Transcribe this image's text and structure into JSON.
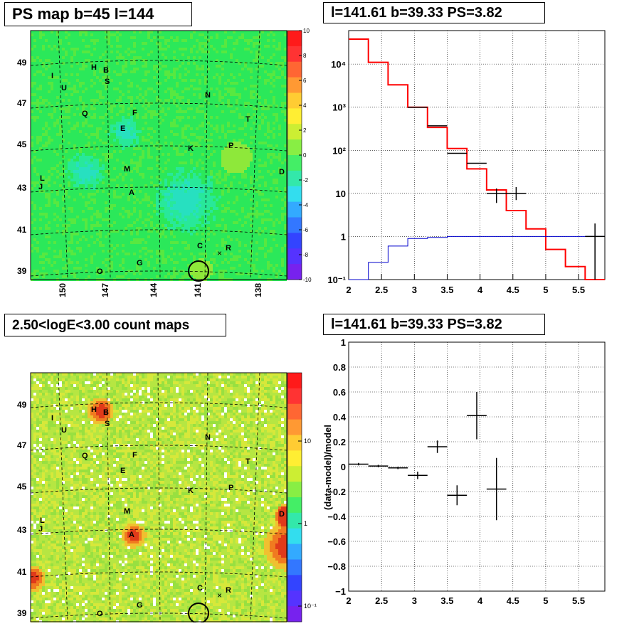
{
  "panels": {
    "top_left_title": "PS map b=45 l=144",
    "top_right_title": "l=141.61 b=39.33 PS=3.82",
    "bottom_left_title": "2.50<logE<3.00 count maps",
    "bottom_right_title": "l=141.61 b=39.33 PS=3.82"
  },
  "chart_data": [
    {
      "type": "heatmap",
      "title": "PS map b=45 l=144",
      "xlabel": "",
      "ylabel": "",
      "x_ticks": [
        "150",
        "147",
        "144",
        "141",
        "138"
      ],
      "y_ticks": [
        "49",
        "47",
        "45",
        "43",
        "41",
        "39"
      ],
      "colorbar": {
        "range": [
          -10,
          10
        ],
        "ticks": [
          "10",
          "8",
          "6",
          "4",
          "2",
          "0",
          "-2",
          "-4",
          "-6",
          "-8",
          "-10"
        ]
      },
      "sources": [
        "H",
        "B",
        "I",
        "S",
        "U",
        "N",
        "Q",
        "F",
        "T",
        "E",
        "K",
        "P",
        "M",
        "D",
        "L",
        "J",
        "A",
        "C",
        "R",
        "G",
        "O"
      ],
      "circle_marker": {
        "l": 141.61,
        "b": 39.33
      },
      "colors": {
        "background": "#27e85a",
        "low": "#28e0b8"
      }
    },
    {
      "type": "line",
      "title": "l=141.61 b=39.33 PS=3.82",
      "xlabel": "",
      "ylabel": "",
      "xlim": [
        2,
        5.9
      ],
      "ylim": [
        0.1,
        60000
      ],
      "log_y": true,
      "grid": true,
      "x_ticks": [
        "2",
        "2.5",
        "3",
        "3.5",
        "4",
        "4.5",
        "5",
        "5.5"
      ],
      "y_ticks": [
        "10⁻¹",
        "1",
        "10",
        "10²",
        "10³",
        "10⁴"
      ],
      "series": [
        {
          "color": "#ff0000",
          "bins": [
            2.0,
            2.3,
            2.6,
            2.9,
            3.2,
            3.5,
            3.8,
            4.1,
            4.4,
            4.7,
            5.0,
            5.3,
            5.6,
            5.9
          ],
          "values": [
            38000,
            11000,
            3300,
            1000,
            340,
            110,
            37,
            12,
            4,
            1.5,
            0.5,
            0.2,
            0.09
          ]
        },
        {
          "color": "#0000cc",
          "bins": [
            2.0,
            2.3,
            2.6,
            2.9,
            3.2,
            3.5,
            3.8,
            4.1,
            4.4,
            4.7,
            5.0,
            5.3,
            5.6,
            5.9
          ],
          "values": [
            0.09,
            0.25,
            0.6,
            0.9,
            0.95,
            1.0,
            1.0,
            1.0,
            1.0,
            1.0,
            1.0,
            1.0,
            1.0
          ]
        },
        {
          "color": "#000000",
          "points": [
            {
              "x": 3.05,
              "y": 1000,
              "xerr": 0.15
            },
            {
              "x": 3.35,
              "y": 370,
              "xerr": 0.15
            },
            {
              "x": 3.65,
              "y": 85,
              "xerr": 0.15
            },
            {
              "x": 3.95,
              "y": 50,
              "xerr": 0.15
            },
            {
              "x": 4.25,
              "y": 10,
              "xerr": 0.15,
              "ylow": 6,
              "yhigh": 13
            },
            {
              "x": 4.55,
              "y": 10,
              "xerr": 0.15,
              "ylow": 7,
              "yhigh": 14
            },
            {
              "x": 5.75,
              "y": 1,
              "xerr": 0.15,
              "ylow": 0.1,
              "yhigh": 2
            }
          ]
        }
      ]
    },
    {
      "type": "heatmap",
      "title": "2.50<logE<3.00 count maps",
      "xlabel": "",
      "ylabel": "",
      "x_ticks": [
        "150",
        "147",
        "144",
        "141",
        "138"
      ],
      "y_ticks": [
        "49",
        "47",
        "45",
        "43",
        "41",
        "39"
      ],
      "colorbar": {
        "log": true,
        "ticks": [
          "10",
          "1",
          "10⁻¹"
        ]
      },
      "sources": [
        "H",
        "B",
        "I",
        "S",
        "U",
        "N",
        "Q",
        "F",
        "T",
        "E",
        "K",
        "P",
        "M",
        "D",
        "L",
        "J",
        "A",
        "C",
        "R",
        "G",
        "O"
      ],
      "circle_marker": {
        "l": 141.61,
        "b": 39.33
      },
      "colors": {
        "background": "#b8e640",
        "hot": "#e03a1a"
      }
    },
    {
      "type": "scatter",
      "title": "l=141.61 b=39.33 PS=3.82",
      "xlabel": "",
      "ylabel": "(data-model)/model",
      "xlim": [
        2,
        5.9
      ],
      "ylim": [
        -1,
        1
      ],
      "grid": true,
      "x_ticks": [
        "2",
        "2.5",
        "3",
        "3.5",
        "4",
        "4.5",
        "5",
        "5.5"
      ],
      "y_ticks": [
        "1",
        "0.8",
        "0.6",
        "0.4",
        "0.2",
        "0",
        "−0.2",
        "−0.4",
        "−0.6",
        "−0.8",
        "−1"
      ],
      "points": [
        {
          "x": 2.15,
          "y": 0.02,
          "xerr": 0.15,
          "yerr": 0.01
        },
        {
          "x": 2.45,
          "y": 0.005,
          "xerr": 0.15,
          "yerr": 0.01
        },
        {
          "x": 2.75,
          "y": -0.01,
          "xerr": 0.15,
          "yerr": 0.01
        },
        {
          "x": 3.05,
          "y": -0.07,
          "xerr": 0.15,
          "yerr": 0.03
        },
        {
          "x": 3.35,
          "y": 0.16,
          "xerr": 0.15,
          "yerr": 0.05
        },
        {
          "x": 3.65,
          "y": -0.23,
          "xerr": 0.15,
          "yerr": 0.08
        },
        {
          "x": 3.95,
          "y": 0.41,
          "xerr": 0.15,
          "yerr": 0.19
        },
        {
          "x": 4.25,
          "y": -0.18,
          "xerr": 0.15,
          "yerr": 0.25
        }
      ]
    }
  ]
}
